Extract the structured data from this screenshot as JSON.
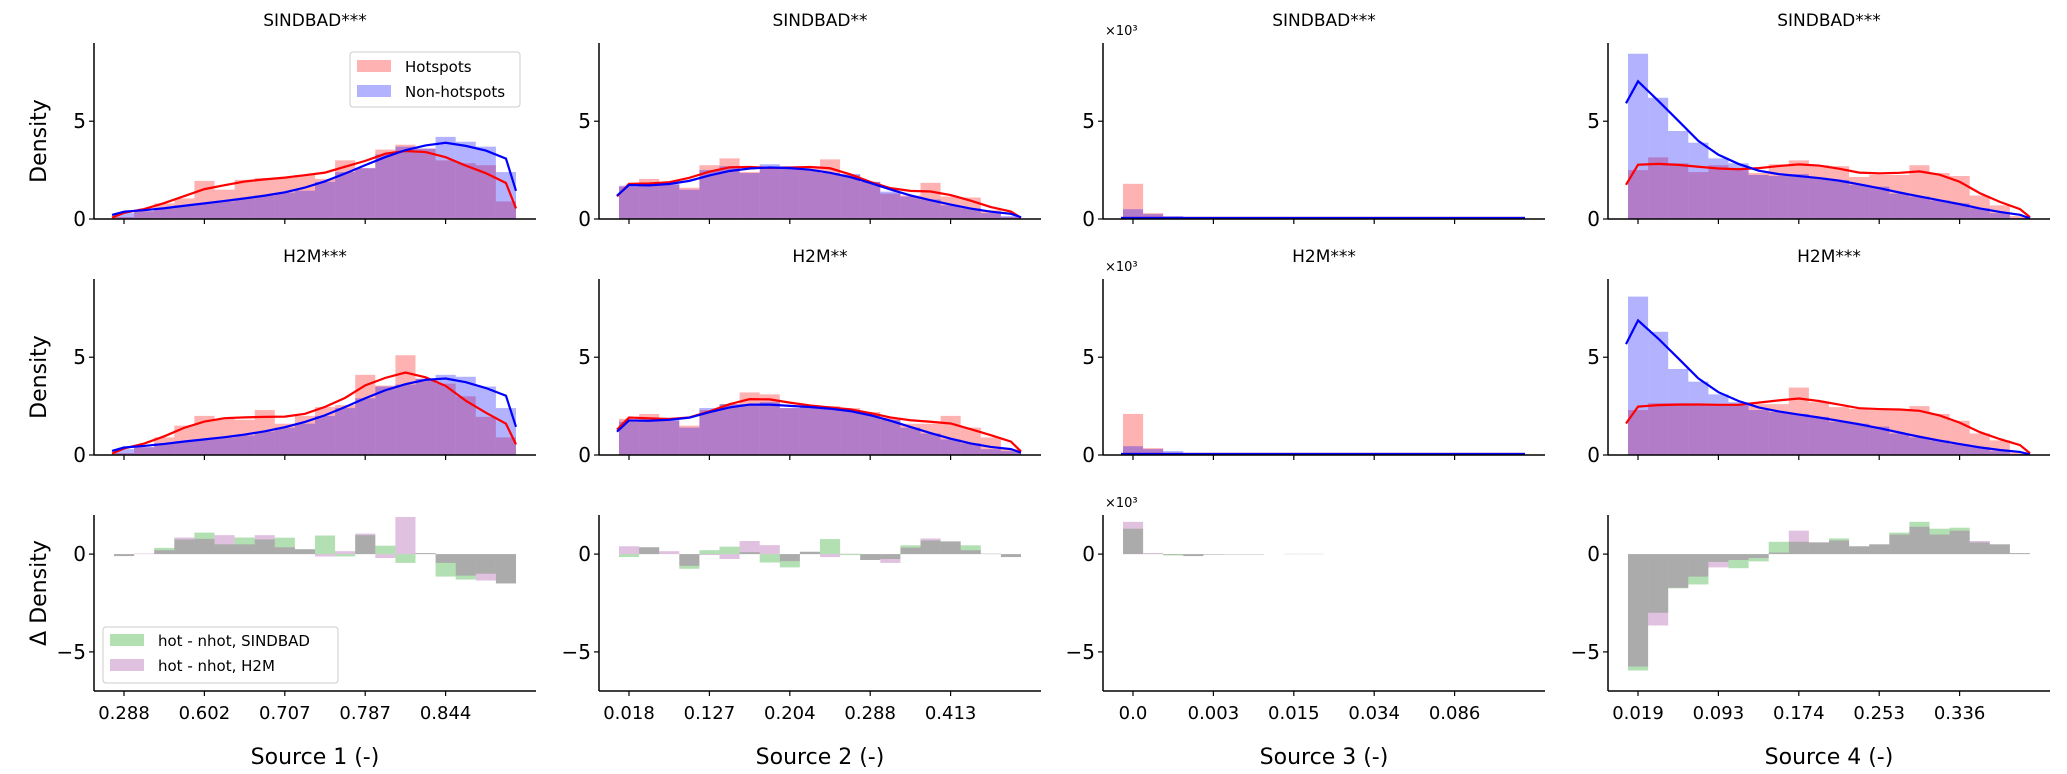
{
  "chart_data": {
    "type": "bar",
    "colors": {
      "hotspots_bar": "#ff0000",
      "nonhotspots_bar": "#0000ff",
      "hotspots_kde": "#ff0000",
      "nonhotspots_kde": "#0000ff",
      "diff_sindbad": "#009900",
      "diff_h2m": "#993399"
    },
    "legend_top": {
      "placement": "upper-right",
      "entries": [
        "Hotspots",
        "Non-hotspots"
      ]
    },
    "legend_bottom": {
      "placement": "lower-left",
      "entries": [
        "hot - nhot, SINDBAD",
        "hot - nhot, H2M"
      ]
    },
    "row_ylabels": [
      "Density",
      "Density",
      "Δ Density"
    ],
    "ylim_density": [
      0,
      9
    ],
    "ylim_delta": [
      -7,
      2
    ],
    "yticks_density": [
      0,
      5
    ],
    "yticks_delta": [
      -5,
      0
    ],
    "panels": [
      {
        "xlabel": "Source 1 (-)",
        "xtick_labels": [
          "0.288",
          "0.602",
          "0.707",
          "0.787",
          "0.844"
        ],
        "scale_label": "",
        "titles": [
          "SINDBAD***",
          "H2M***"
        ],
        "sindbad": {
          "hot": [
            0.1,
            0.4,
            0.8,
            1.05,
            1.95,
            1.5,
            2.0,
            2.1,
            2.1,
            2.25,
            2.05,
            3.0,
            2.6,
            3.55,
            3.8,
            3.6,
            3.0,
            2.85,
            2.75,
            0.9
          ],
          "nonhot": [
            0.3,
            0.4,
            0.55,
            0.7,
            0.8,
            0.9,
            1.05,
            1.2,
            1.35,
            1.45,
            1.9,
            2.4,
            2.6,
            3.3,
            3.7,
            3.6,
            4.2,
            3.95,
            3.7,
            2.4
          ]
        },
        "h2m": {
          "hot": [
            0.1,
            0.4,
            0.9,
            1.5,
            2.0,
            1.85,
            1.8,
            2.3,
            1.6,
            2.0,
            2.45,
            2.55,
            4.1,
            3.55,
            5.1,
            3.9,
            3.65,
            3.0,
            1.95,
            0.9
          ],
          "nonhot": [
            0.3,
            0.4,
            0.6,
            0.7,
            0.8,
            0.9,
            1.0,
            1.2,
            1.4,
            1.6,
            2.0,
            2.4,
            2.9,
            3.5,
            3.6,
            3.9,
            4.1,
            4.0,
            3.5,
            2.4
          ]
        },
        "delta_sindbad": [
          -0.1,
          0.0,
          0.32,
          0.75,
          1.1,
          0.5,
          0.85,
          0.75,
          0.84,
          0.25,
          0.95,
          -0.12,
          0.97,
          0.43,
          -0.45,
          0.05,
          -1.15,
          -1.3,
          -1.0,
          -1.5
        ],
        "delta_h2m": [
          -0.1,
          0.03,
          0.2,
          0.85,
          0.78,
          0.97,
          0.5,
          0.97,
          0.35,
          0.25,
          -0.12,
          0.15,
          1.05,
          -0.2,
          1.9,
          0.05,
          -0.45,
          -1.1,
          -1.35,
          -1.5
        ]
      },
      {
        "xlabel": "Source 2 (-)",
        "xtick_labels": [
          "0.018",
          "0.127",
          "0.204",
          "0.288",
          "0.413"
        ],
        "scale_label": "",
        "titles": [
          "SINDBAD**",
          "H2M**"
        ],
        "sindbad": {
          "hot": [
            1.65,
            2.05,
            1.75,
            1.6,
            2.75,
            3.1,
            2.4,
            2.6,
            2.6,
            2.6,
            3.05,
            2.25,
            1.9,
            1.3,
            1.2,
            1.85,
            1.15,
            1.1,
            0.45,
            0.1
          ],
          "nonhot": [
            1.7,
            1.75,
            1.8,
            1.5,
            2.5,
            2.7,
            2.35,
            2.8,
            2.7,
            2.5,
            2.35,
            2.3,
            1.9,
            1.4,
            1.15,
            1.0,
            0.7,
            0.55,
            0.3,
            0.15
          ]
        },
        "h2m": {
          "hot": [
            1.85,
            2.1,
            1.75,
            1.5,
            2.3,
            2.6,
            3.2,
            3.1,
            2.4,
            2.5,
            2.5,
            2.4,
            2.2,
            1.9,
            1.6,
            1.6,
            2.0,
            1.4,
            0.9,
            0.3
          ],
          "nonhot": [
            1.7,
            1.8,
            1.9,
            1.4,
            2.4,
            2.6,
            2.6,
            2.7,
            2.4,
            2.5,
            2.4,
            2.3,
            2.1,
            1.8,
            1.4,
            1.1,
            0.8,
            0.6,
            0.3,
            0.2
          ]
        },
        "delta_sindbad": [
          -0.15,
          0.35,
          0.0,
          -0.75,
          0.2,
          0.38,
          0.1,
          -0.43,
          -0.68,
          0.12,
          0.77,
          -0.05,
          -0.3,
          -0.25,
          0.45,
          0.7,
          0.65,
          0.45,
          0.02,
          -0.15
        ],
        "delta_h2m": [
          0.4,
          0.35,
          0.15,
          -0.6,
          -0.05,
          -0.25,
          0.67,
          0.46,
          -0.36,
          0.12,
          -0.15,
          0.02,
          -0.3,
          -0.45,
          0.33,
          0.8,
          0.65,
          0.2,
          0.02,
          -0.15
        ]
      },
      {
        "xlabel": "Source 3 (-)",
        "xtick_labels": [
          "0.0",
          "0.003",
          "0.015",
          "0.034",
          "0.086"
        ],
        "scale_label": "×10³",
        "titles": [
          "SINDBAD***",
          "H2M***"
        ],
        "sindbad": {
          "hot": [
            1.8,
            0.3,
            0.05,
            0.02,
            0.02,
            0.02,
            0.02,
            0.02,
            0.02,
            0.02,
            0.02,
            0.02,
            0.02,
            0.02,
            0.02,
            0.02,
            0.02,
            0.02,
            0.02,
            0.02
          ],
          "nonhot": [
            0.5,
            0.25,
            0.15,
            0.05,
            0.03,
            0.03,
            0.03,
            0.03,
            0.03,
            0.03,
            0.03,
            0.03,
            0.03,
            0.03,
            0.03,
            0.03,
            0.03,
            0.03,
            0.03,
            0.03
          ]
        },
        "h2m": {
          "hot": [
            2.1,
            0.35,
            0.1,
            0.02,
            0.02,
            0.02,
            0.02,
            0.02,
            0.02,
            0.02,
            0.02,
            0.02,
            0.02,
            0.02,
            0.02,
            0.02,
            0.02,
            0.02,
            0.02,
            0.02
          ],
          "nonhot": [
            0.45,
            0.3,
            0.2,
            0.05,
            0.03,
            0.03,
            0.03,
            0.03,
            0.03,
            0.03,
            0.03,
            0.03,
            0.03,
            0.03,
            0.03,
            0.03,
            0.03,
            0.03,
            0.03,
            0.03
          ]
        },
        "delta_sindbad": [
          1.3,
          0.02,
          -0.07,
          -0.1,
          -0.02,
          -0.02,
          -0.02,
          0,
          0.01,
          0.01,
          0,
          0,
          0,
          0,
          0,
          0,
          0,
          0,
          0,
          0
        ],
        "delta_h2m": [
          1.65,
          0.05,
          -0.03,
          -0.1,
          -0.03,
          -0.02,
          -0.02,
          0,
          0.01,
          0.01,
          0,
          0,
          0,
          0,
          0,
          0,
          0,
          0,
          0,
          0
        ]
      },
      {
        "xlabel": "Source 4 (-)",
        "xtick_labels": [
          "0.019",
          "0.093",
          "0.174",
          "0.253",
          "0.336"
        ],
        "scale_label": "",
        "titles": [
          "SINDBAD***",
          "H2M***"
        ],
        "sindbad": {
          "hot": [
            2.5,
            3.15,
            2.85,
            2.4,
            2.75,
            2.5,
            2.35,
            2.8,
            3.0,
            2.75,
            2.7,
            2.15,
            2.25,
            2.25,
            2.75,
            2.35,
            2.2,
            1.2,
            0.7,
            0.15
          ],
          "nonhot": [
            8.45,
            6.2,
            4.5,
            3.9,
            3.1,
            2.85,
            2.25,
            2.2,
            2.3,
            2.1,
            2.0,
            1.75,
            1.65,
            1.3,
            1.15,
            0.95,
            0.8,
            0.55,
            0.3,
            0.05
          ]
        },
        "h2m": {
          "hot": [
            2.3,
            2.65,
            2.65,
            2.55,
            2.55,
            2.55,
            2.6,
            2.6,
            3.45,
            2.7,
            2.45,
            2.35,
            2.3,
            2.3,
            2.5,
            2.1,
            1.75,
            1.1,
            0.75,
            0.15
          ],
          "nonhot": [
            8.1,
            6.3,
            4.4,
            3.75,
            3.1,
            2.7,
            2.3,
            2.2,
            2.1,
            1.95,
            1.7,
            1.6,
            1.45,
            1.1,
            0.9,
            0.75,
            0.55,
            0.4,
            0.2,
            0.05
          ]
        },
        "delta_sindbad": [
          -5.95,
          -3.0,
          -1.75,
          -1.55,
          -0.4,
          -0.72,
          -0.37,
          0.63,
          0.63,
          0.6,
          0.8,
          0.4,
          0.5,
          1.1,
          1.65,
          1.3,
          1.35,
          0.6,
          0.5,
          0.05
        ],
        "delta_h2m": [
          -5.75,
          -3.65,
          -1.72,
          -1.15,
          -0.68,
          -0.3,
          -0.2,
          0.08,
          1.2,
          0.6,
          0.7,
          0.4,
          0.5,
          1.0,
          1.4,
          1.0,
          1.2,
          0.67,
          0.5,
          0.05
        ]
      }
    ]
  }
}
